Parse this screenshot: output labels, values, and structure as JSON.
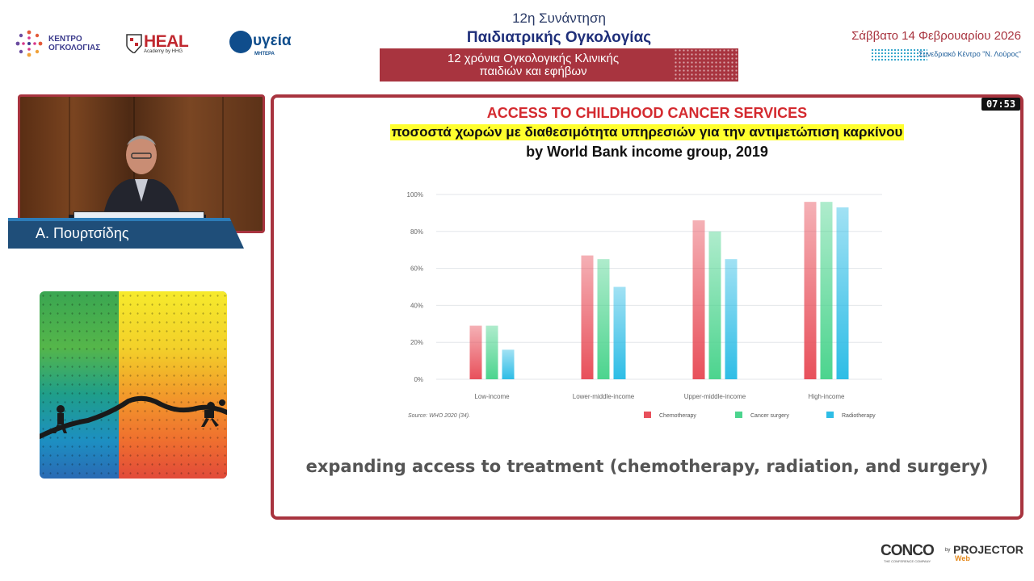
{
  "header": {
    "kentro_logo": [
      "ΚΕΝΤΡΟ",
      "ΟΓΚΟΛΟΓΙΑΣ"
    ],
    "heal_logo": {
      "name": "HEAL",
      "tagline": "Academy by HHG"
    },
    "ygeia_logo": {
      "name": "υγεία",
      "tagline": "ΜΗΤΕΡΑ"
    },
    "conference": {
      "line1": "12η Συνάντηση",
      "line2": "Παιδιατρικής Ογκολογίας",
      "banner_line1": "12 χρόνια Ογκολογικής Κλινικής",
      "banner_line2": "παιδιών και εφήβων"
    },
    "date": "Σάββατο 14 Φεβρουαρίου 2026",
    "venue": "Συνεδριακό Κέντρο \"Ν. Λούρος\""
  },
  "speaker": {
    "name": "Α. Πουρτσίδης"
  },
  "timer": "07:53",
  "slide": {
    "title": "ACCESS TO CHILDHOOD CANCER SERVICES",
    "subtitle": "ποσοστά χωρών με διαθεσιμότητα υπηρεσιών για την αντιμετώπιση καρκίνου",
    "subtitle2": "by World Bank income group, 2019",
    "caption": "expanding access to treatment (chemotherapy, radiation, and surgery)"
  },
  "chart_data": {
    "type": "bar",
    "categories": [
      "Low-income",
      "Lower-middle-income",
      "Upper-middle-income",
      "High-income"
    ],
    "series": [
      {
        "name": "Chemotherapy",
        "color": "#e8505b",
        "values": [
          29,
          67,
          86,
          96
        ]
      },
      {
        "name": "Cancer surgery",
        "color": "#4cd48e",
        "values": [
          29,
          65,
          80,
          96
        ]
      },
      {
        "name": "Radiotherapy",
        "color": "#2ebde6",
        "values": [
          16,
          50,
          65,
          93
        ]
      }
    ],
    "yticks": [
      "0%",
      "20%",
      "40%",
      "60%",
      "80%",
      "100%"
    ],
    "ylim": [
      0,
      100
    ],
    "source": "Source: WHO 2020 (34).",
    "legend_position": "bottom-right",
    "grid": true
  },
  "footer": {
    "conco_logo": {
      "name": "CONCO",
      "tagline": "THE CONFERENCE COMPANY"
    },
    "projector_logo": {
      "by": "by",
      "name": "PROJECTOR",
      "sub": "Web"
    }
  },
  "colors": {
    "accent": "#a8343f",
    "navy": "#1f4e79",
    "title_red": "#d42a2f",
    "highlight": "#ffff2e"
  }
}
